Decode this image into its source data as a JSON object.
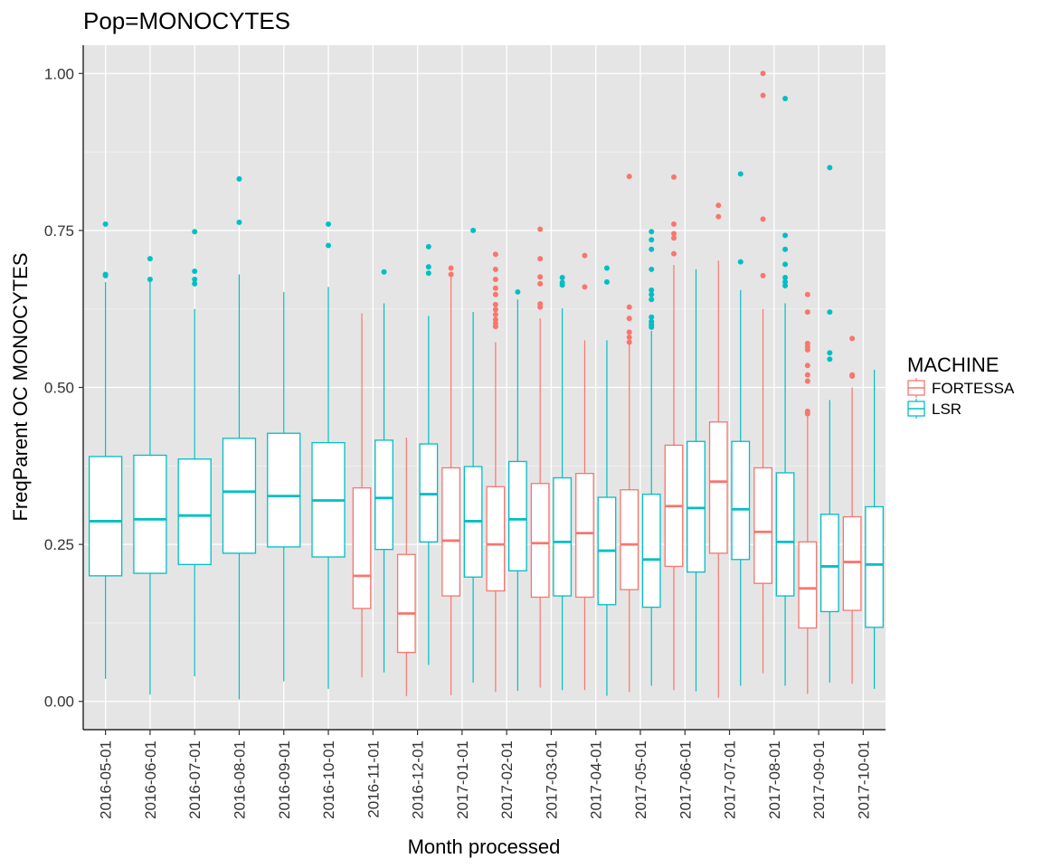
{
  "chart_data": {
    "type": "box",
    "title": "Pop=MONOCYTES",
    "xlabel": "Month processed",
    "ylabel": "FreqParent OC  MONOCYTES",
    "ylim": [
      -0.045,
      1.045
    ],
    "yticks": [
      0.0,
      0.25,
      0.5,
      0.75,
      1.0
    ],
    "ytick_labels": [
      "0.00",
      "0.25",
      "0.50",
      "0.75",
      "1.00"
    ],
    "categories": [
      "2016-05-01",
      "2016-06-01",
      "2016-07-01",
      "2016-08-01",
      "2016-09-01",
      "2016-10-01",
      "2016-11-01",
      "2016-12-01",
      "2017-01-01",
      "2017-02-01",
      "2017-03-01",
      "2017-04-01",
      "2017-05-01",
      "2017-06-01",
      "2017-07-01",
      "2017-08-01",
      "2017-09-01",
      "2017-10-01"
    ],
    "grid": true,
    "legend": {
      "title": "MACHINE",
      "position": "right",
      "entries": [
        {
          "name": "FORTESSA",
          "color": "#F8766D"
        },
        {
          "name": "LSR",
          "color": "#00BFC4"
        }
      ]
    },
    "colors": {
      "FORTESSA": "#F8766D",
      "LSR": "#00BFC4",
      "panel": "#E5E5E5",
      "grid": "#FFFFFF"
    },
    "series": [
      {
        "name": "FORTESSA",
        "boxes": [
          null,
          null,
          null,
          null,
          null,
          null,
          {
            "q1": 0.148,
            "median": 0.2,
            "q3": 0.34,
            "low": 0.038,
            "high": 0.618,
            "outliers": []
          },
          {
            "q1": 0.078,
            "median": 0.14,
            "q3": 0.234,
            "low": 0.008,
            "high": 0.42,
            "outliers": []
          },
          {
            "q1": 0.168,
            "median": 0.256,
            "q3": 0.372,
            "low": 0.01,
            "high": 0.68,
            "outliers": [
              0.69,
              0.68
            ]
          },
          {
            "q1": 0.176,
            "median": 0.25,
            "q3": 0.342,
            "low": 0.015,
            "high": 0.572,
            "outliers": [
              0.712,
              0.688,
              0.672,
              0.658,
              0.648,
              0.632,
              0.624,
              0.616,
              0.608,
              0.602,
              0.597
            ]
          },
          {
            "q1": 0.166,
            "median": 0.252,
            "q3": 0.347,
            "low": 0.022,
            "high": 0.61,
            "outliers": [
              0.752,
              0.705,
              0.676,
              0.665,
              0.633,
              0.628
            ]
          },
          {
            "q1": 0.166,
            "median": 0.268,
            "q3": 0.363,
            "low": 0.018,
            "high": 0.575,
            "outliers": [
              0.71,
              0.66
            ]
          },
          {
            "q1": 0.178,
            "median": 0.25,
            "q3": 0.337,
            "low": 0.015,
            "high": 0.568,
            "outliers": [
              0.836,
              0.628,
              0.61,
              0.588,
              0.58,
              0.572
            ]
          },
          {
            "q1": 0.215,
            "median": 0.311,
            "q3": 0.408,
            "low": 0.018,
            "high": 0.695,
            "outliers": [
              0.835,
              0.76,
              0.745,
              0.738,
              0.713
            ]
          },
          {
            "q1": 0.236,
            "median": 0.35,
            "q3": 0.445,
            "low": 0.006,
            "high": 0.702,
            "outliers": [
              0.79,
              0.772
            ]
          },
          {
            "q1": 0.188,
            "median": 0.27,
            "q3": 0.372,
            "low": 0.045,
            "high": 0.625,
            "outliers": [
              1.0,
              0.965,
              0.768,
              0.678
            ]
          },
          {
            "q1": 0.117,
            "median": 0.18,
            "q3": 0.254,
            "low": 0.012,
            "high": 0.455,
            "outliers": [
              0.648,
              0.62,
              0.57,
              0.565,
              0.56,
              0.535,
              0.52,
              0.51,
              0.462,
              0.458
            ]
          },
          {
            "q1": 0.145,
            "median": 0.222,
            "q3": 0.294,
            "low": 0.028,
            "high": 0.5,
            "outliers": [
              0.578,
              0.52,
              0.518
            ]
          }
        ]
      },
      {
        "name": "LSR",
        "boxes": [
          {
            "q1": 0.2,
            "median": 0.287,
            "q3": 0.39,
            "low": 0.036,
            "high": 0.668,
            "outliers": [
              0.76,
              0.68,
              0.678
            ]
          },
          {
            "q1": 0.204,
            "median": 0.29,
            "q3": 0.392,
            "low": 0.011,
            "high": 0.668,
            "outliers": [
              0.705,
              0.672
            ]
          },
          {
            "q1": 0.218,
            "median": 0.296,
            "q3": 0.386,
            "low": 0.04,
            "high": 0.625,
            "outliers": [
              0.748,
              0.685,
              0.672,
              0.665
            ]
          },
          {
            "q1": 0.236,
            "median": 0.334,
            "q3": 0.419,
            "low": 0.003,
            "high": 0.68,
            "outliers": [
              0.832,
              0.763
            ]
          },
          {
            "q1": 0.246,
            "median": 0.327,
            "q3": 0.427,
            "low": 0.032,
            "high": 0.652,
            "outliers": []
          },
          {
            "q1": 0.23,
            "median": 0.32,
            "q3": 0.412,
            "low": 0.02,
            "high": 0.66,
            "outliers": [
              0.76,
              0.726
            ]
          },
          {
            "q1": 0.242,
            "median": 0.324,
            "q3": 0.416,
            "low": 0.046,
            "high": 0.634,
            "outliers": [
              0.684
            ]
          },
          {
            "q1": 0.254,
            "median": 0.33,
            "q3": 0.41,
            "low": 0.058,
            "high": 0.614,
            "outliers": [
              0.724,
              0.692,
              0.682
            ]
          },
          {
            "q1": 0.198,
            "median": 0.287,
            "q3": 0.374,
            "low": 0.03,
            "high": 0.62,
            "outliers": [
              0.75
            ]
          },
          {
            "q1": 0.208,
            "median": 0.29,
            "q3": 0.382,
            "low": 0.017,
            "high": 0.64,
            "outliers": [
              0.652
            ]
          },
          {
            "q1": 0.168,
            "median": 0.254,
            "q3": 0.356,
            "low": 0.018,
            "high": 0.626,
            "outliers": [
              0.675,
              0.667,
              0.663
            ]
          },
          {
            "q1": 0.154,
            "median": 0.24,
            "q3": 0.325,
            "low": 0.009,
            "high": 0.575,
            "outliers": [
              0.69,
              0.668
            ]
          },
          {
            "q1": 0.15,
            "median": 0.226,
            "q3": 0.33,
            "low": 0.025,
            "high": 0.59,
            "outliers": [
              0.748,
              0.735,
              0.72,
              0.688,
              0.655,
              0.648,
              0.64,
              0.612,
              0.605,
              0.6,
              0.596
            ]
          },
          {
            "q1": 0.206,
            "median": 0.308,
            "q3": 0.414,
            "low": 0.016,
            "high": 0.688,
            "outliers": []
          },
          {
            "q1": 0.226,
            "median": 0.306,
            "q3": 0.414,
            "low": 0.025,
            "high": 0.655,
            "outliers": [
              0.84,
              0.7
            ]
          },
          {
            "q1": 0.168,
            "median": 0.254,
            "q3": 0.364,
            "low": 0.025,
            "high": 0.634,
            "outliers": [
              0.96,
              0.742,
              0.72,
              0.696,
              0.675,
              0.668,
              0.662
            ]
          },
          {
            "q1": 0.143,
            "median": 0.215,
            "q3": 0.298,
            "low": 0.03,
            "high": 0.48,
            "outliers": [
              0.85,
              0.62,
              0.555,
              0.545
            ]
          },
          {
            "q1": 0.118,
            "median": 0.218,
            "q3": 0.31,
            "low": 0.02,
            "high": 0.528,
            "outliers": []
          }
        ]
      }
    ]
  }
}
